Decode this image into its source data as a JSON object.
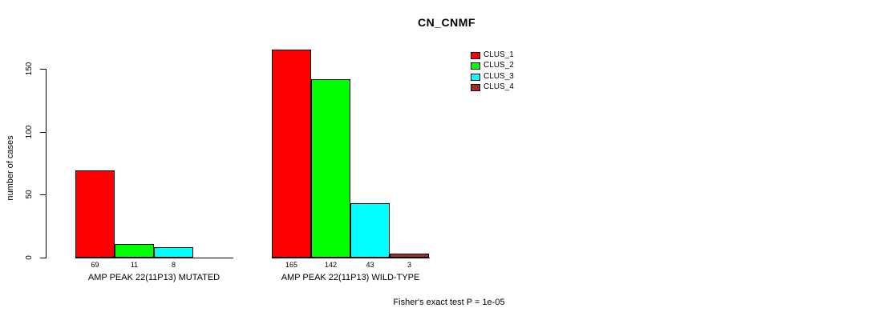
{
  "chart_data": {
    "type": "bar",
    "title": "CN_CNMF",
    "ylabel": "number of cases",
    "ylim": [
      0,
      150
    ],
    "yticks": [
      0,
      50,
      100,
      150
    ],
    "grid": false,
    "legend_position": "top-right",
    "series_colors": [
      "#ff0000",
      "#00ff00",
      "#00ffff",
      "#a52a2a"
    ],
    "legend": [
      {
        "label": "CLUS_1",
        "color": "#ff0000"
      },
      {
        "label": "CLUS_2",
        "color": "#00ff00"
      },
      {
        "label": "CLUS_3",
        "color": "#00ffff"
      },
      {
        "label": "CLUS_4",
        "color": "#a52a2a"
      }
    ],
    "groups": [
      {
        "label": "AMP PEAK 22(11P13) MUTATED",
        "values": [
          69,
          11,
          8,
          null
        ],
        "value_labels": [
          "69",
          "11",
          "8",
          ""
        ]
      },
      {
        "label": "AMP PEAK 22(11P13) WILD-TYPE",
        "values": [
          165,
          142,
          43,
          3
        ],
        "value_labels": [
          "165",
          "142",
          "43",
          "3"
        ]
      }
    ],
    "footnote": "Fisher's exact test P = 1e-05"
  }
}
